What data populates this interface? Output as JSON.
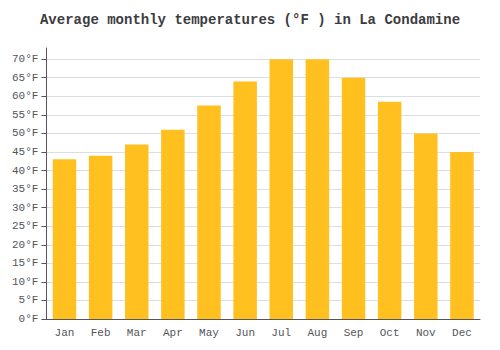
{
  "chart_data": {
    "type": "bar",
    "title": "Average monthly temperatures (°F ) in La Condamine",
    "categories": [
      "Jan",
      "Feb",
      "Mar",
      "Apr",
      "May",
      "Jun",
      "Jul",
      "Aug",
      "Sep",
      "Oct",
      "Nov",
      "Dec"
    ],
    "values": [
      43,
      44,
      47,
      51,
      57.5,
      64,
      70,
      70,
      65,
      58.5,
      50,
      45
    ],
    "color": "#FFC020",
    "ylim": [
      0,
      73
    ],
    "yticks": [
      {
        "value": 0,
        "label": "0°F"
      },
      {
        "value": 5,
        "label": "5°F"
      },
      {
        "value": 10,
        "label": "10°F"
      },
      {
        "value": 15,
        "label": "15°F"
      },
      {
        "value": 20,
        "label": "20°F"
      },
      {
        "value": 25,
        "label": "25°F"
      },
      {
        "value": 30,
        "label": "30°F"
      },
      {
        "value": 35,
        "label": "35°F"
      },
      {
        "value": 40,
        "label": "40°F"
      },
      {
        "value": 45,
        "label": "45°F"
      },
      {
        "value": 50,
        "label": "50°F"
      },
      {
        "value": 55,
        "label": "55°F"
      },
      {
        "value": 60,
        "label": "60°F"
      },
      {
        "value": 65,
        "label": "65°F"
      },
      {
        "value": 70,
        "label": "70°F"
      }
    ],
    "grid": true
  }
}
